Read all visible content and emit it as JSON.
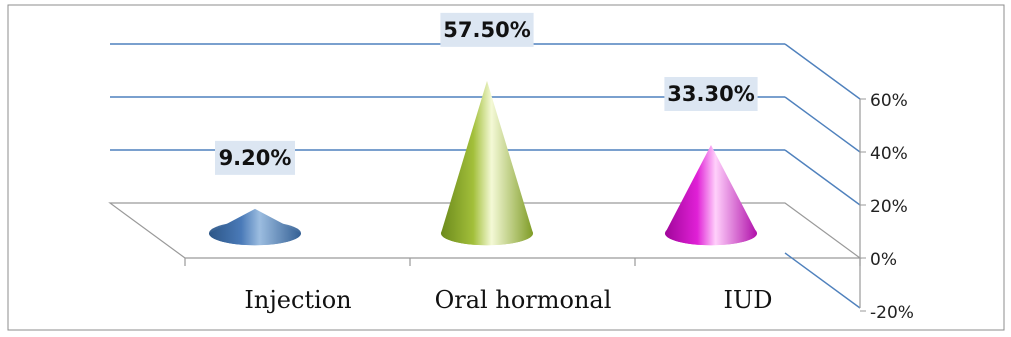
{
  "chart_data": {
    "type": "bar",
    "style": "3d-cone",
    "categories": [
      "Injection",
      "Oral hormonal",
      "IUD"
    ],
    "values": [
      9.2,
      57.5,
      33.3
    ],
    "data_labels": [
      "9.20%",
      "57.50%",
      "33.30%"
    ],
    "y_ticks": [
      "-20%",
      "0%",
      "20%",
      "40%",
      "60%"
    ],
    "ylim": [
      -20,
      60
    ],
    "y_axis_side": "right",
    "grid": true,
    "legend": "none",
    "colors": {
      "Injection": "#4a7ab8",
      "Oral hormonal": "#a2bf3a",
      "IUD": "#e020d6",
      "gridline": "#4f81bd",
      "data_label_bg": "#dce6f2",
      "frame": "#8c8c8c"
    }
  }
}
